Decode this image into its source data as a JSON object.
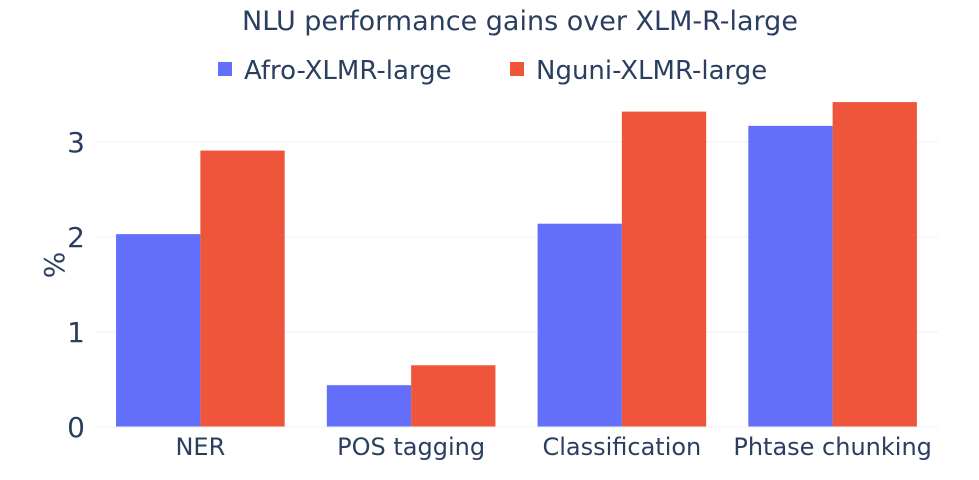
{
  "chart_data": {
    "type": "bar",
    "title": "NLU performance gains over XLM-R-large",
    "xlabel": "",
    "ylabel": "%",
    "categories": [
      "NER",
      "POS tagging",
      "Classification",
      "Phtase chunking"
    ],
    "series": [
      {
        "name": "Afro-XLMR-large",
        "color": "#636efa",
        "values": [
          2.03,
          0.44,
          2.14,
          3.17
        ]
      },
      {
        "name": "Nguni-XLMR-large",
        "color": "#ef553b",
        "values": [
          2.91,
          0.65,
          3.32,
          3.42
        ]
      }
    ],
    "ylim": [
      0,
      3.6
    ],
    "yticks": [
      0,
      1,
      2,
      3
    ],
    "grid": true,
    "legend_position": "top-center"
  }
}
